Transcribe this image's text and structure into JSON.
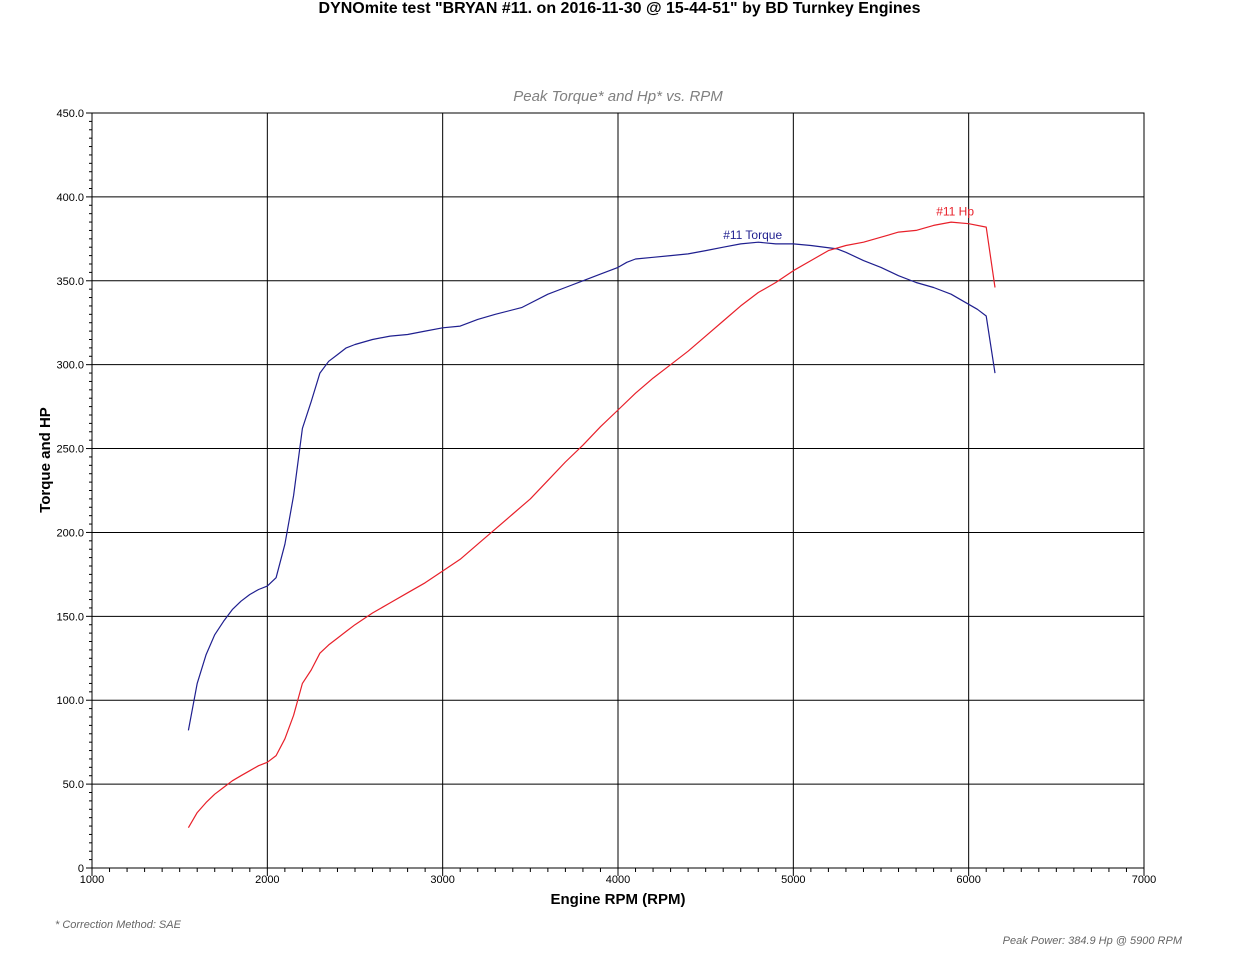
{
  "title": "DYNOmite test \"BRYAN #11. on 2016-11-30 @ 15-44-51\" by BD Turnkey Engines",
  "footnote": "* Correction Method: SAE",
  "peak_power_note": "Peak Power: 384.9 Hp @ 5900 RPM",
  "colors": {
    "torque": "#1f1f8f",
    "hp": "#e8202a",
    "grid": "#000000"
  },
  "chart_data": {
    "type": "line",
    "title": "Peak Torque* and Hp* vs. RPM",
    "xlabel": "Engine RPM (RPM)",
    "ylabel": "Torque and HP",
    "xlim": [
      1000,
      7000
    ],
    "ylim": [
      0,
      450
    ],
    "x_ticks": [
      1000,
      2000,
      3000,
      4000,
      5000,
      6000,
      7000
    ],
    "y_ticks": [
      0,
      50,
      100,
      150,
      200,
      250,
      300,
      350,
      400,
      450
    ],
    "y_tick_labels": [
      "0",
      "50.0",
      "100.0",
      "150.0",
      "200.0",
      "250.0",
      "300.0",
      "350.0",
      "400.0",
      "450.0"
    ],
    "grid": true,
    "series": [
      {
        "name": "#11 Torque",
        "color_key": "torque",
        "label_at": [
          4600,
          375
        ],
        "points": [
          [
            1550,
            82
          ],
          [
            1600,
            110
          ],
          [
            1650,
            127
          ],
          [
            1700,
            139
          ],
          [
            1750,
            147
          ],
          [
            1800,
            154
          ],
          [
            1850,
            159
          ],
          [
            1900,
            163
          ],
          [
            1950,
            166
          ],
          [
            2000,
            168
          ],
          [
            2050,
            173
          ],
          [
            2100,
            193
          ],
          [
            2150,
            222
          ],
          [
            2200,
            262
          ],
          [
            2250,
            278
          ],
          [
            2300,
            295
          ],
          [
            2350,
            302
          ],
          [
            2400,
            306
          ],
          [
            2450,
            310
          ],
          [
            2500,
            312
          ],
          [
            2600,
            315
          ],
          [
            2700,
            317
          ],
          [
            2800,
            318
          ],
          [
            2900,
            320
          ],
          [
            3000,
            322
          ],
          [
            3100,
            323
          ],
          [
            3200,
            327
          ],
          [
            3300,
            330
          ],
          [
            3450,
            334
          ],
          [
            3600,
            342
          ],
          [
            3700,
            346
          ],
          [
            3800,
            350
          ],
          [
            3900,
            354
          ],
          [
            4000,
            358
          ],
          [
            4050,
            361
          ],
          [
            4100,
            363
          ],
          [
            4200,
            364
          ],
          [
            4300,
            365
          ],
          [
            4400,
            366
          ],
          [
            4500,
            368
          ],
          [
            4600,
            370
          ],
          [
            4700,
            372
          ],
          [
            4800,
            373
          ],
          [
            4900,
            372
          ],
          [
            5000,
            372
          ],
          [
            5100,
            371
          ],
          [
            5250,
            369
          ],
          [
            5300,
            367
          ],
          [
            5400,
            362
          ],
          [
            5500,
            358
          ],
          [
            5600,
            353
          ],
          [
            5700,
            349
          ],
          [
            5800,
            346
          ],
          [
            5900,
            342
          ],
          [
            6000,
            336
          ],
          [
            6050,
            333
          ],
          [
            6100,
            329
          ],
          [
            6150,
            295
          ]
        ]
      },
      {
        "name": "#11 Hp",
        "color_key": "hp",
        "label_at": [
          5815,
          389
        ],
        "points": [
          [
            1550,
            24
          ],
          [
            1600,
            33
          ],
          [
            1650,
            39
          ],
          [
            1700,
            44
          ],
          [
            1750,
            48
          ],
          [
            1800,
            52
          ],
          [
            1850,
            55
          ],
          [
            1900,
            58
          ],
          [
            1950,
            61
          ],
          [
            2000,
            63
          ],
          [
            2050,
            67
          ],
          [
            2100,
            77
          ],
          [
            2150,
            91
          ],
          [
            2200,
            110
          ],
          [
            2250,
            118
          ],
          [
            2300,
            128
          ],
          [
            2350,
            133
          ],
          [
            2400,
            137
          ],
          [
            2450,
            141
          ],
          [
            2500,
            145
          ],
          [
            2600,
            152
          ],
          [
            2700,
            158
          ],
          [
            2800,
            164
          ],
          [
            2900,
            170
          ],
          [
            3000,
            177
          ],
          [
            3100,
            184
          ],
          [
            3200,
            193
          ],
          [
            3300,
            202
          ],
          [
            3400,
            211
          ],
          [
            3500,
            220
          ],
          [
            3600,
            231
          ],
          [
            3700,
            242
          ],
          [
            3800,
            252
          ],
          [
            3900,
            263
          ],
          [
            4000,
            273
          ],
          [
            4100,
            283
          ],
          [
            4200,
            292
          ],
          [
            4300,
            300
          ],
          [
            4400,
            308
          ],
          [
            4500,
            317
          ],
          [
            4600,
            326
          ],
          [
            4700,
            335
          ],
          [
            4800,
            343
          ],
          [
            4900,
            349
          ],
          [
            5000,
            356
          ],
          [
            5100,
            362
          ],
          [
            5200,
            368
          ],
          [
            5300,
            371
          ],
          [
            5400,
            373
          ],
          [
            5500,
            376
          ],
          [
            5600,
            379
          ],
          [
            5700,
            380
          ],
          [
            5800,
            383
          ],
          [
            5900,
            385
          ],
          [
            6000,
            384
          ],
          [
            6100,
            382
          ],
          [
            6150,
            346
          ]
        ]
      }
    ]
  }
}
